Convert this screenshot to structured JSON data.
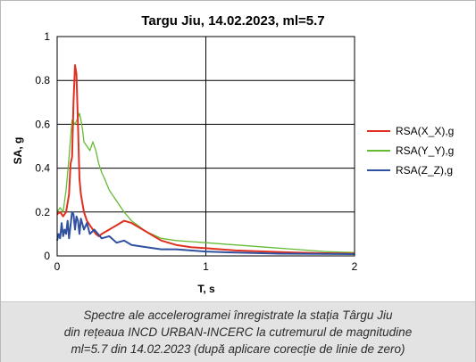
{
  "chart_data": {
    "type": "line",
    "title": "Targu Jiu, 14.02.2023, ml=5.7",
    "xlabel": "T, s",
    "ylabel": "SA, g",
    "xlim": [
      0,
      2
    ],
    "ylim": [
      0,
      1
    ],
    "x_ticks": [
      "0",
      "1",
      "2"
    ],
    "y_ticks": [
      "0",
      "0.2",
      "0.4",
      "0.6",
      "0.8",
      "1"
    ],
    "grid": true,
    "legend_position": "right",
    "series": [
      {
        "name": "RSA(X_X),g",
        "color": "#e03020",
        "x": [
          0.0,
          0.02,
          0.04,
          0.06,
          0.08,
          0.09,
          0.1,
          0.11,
          0.12,
          0.13,
          0.14,
          0.15,
          0.16,
          0.18,
          0.2,
          0.22,
          0.24,
          0.26,
          0.28,
          0.3,
          0.35,
          0.4,
          0.45,
          0.5,
          0.55,
          0.6,
          0.65,
          0.7,
          0.8,
          0.9,
          1.0,
          1.1,
          1.2,
          1.4,
          1.6,
          1.8,
          2.0
        ],
        "y": [
          0.19,
          0.2,
          0.18,
          0.2,
          0.28,
          0.42,
          0.45,
          0.7,
          0.87,
          0.83,
          0.6,
          0.35,
          0.28,
          0.2,
          0.16,
          0.14,
          0.12,
          0.1,
          0.09,
          0.1,
          0.12,
          0.14,
          0.16,
          0.15,
          0.13,
          0.11,
          0.09,
          0.07,
          0.05,
          0.04,
          0.035,
          0.03,
          0.025,
          0.02,
          0.015,
          0.012,
          0.01
        ]
      },
      {
        "name": "RSA(Y_Y),g",
        "color": "#66bb33",
        "x": [
          0.0,
          0.02,
          0.04,
          0.05,
          0.06,
          0.08,
          0.1,
          0.12,
          0.14,
          0.15,
          0.16,
          0.17,
          0.18,
          0.2,
          0.22,
          0.24,
          0.26,
          0.28,
          0.3,
          0.32,
          0.35,
          0.4,
          0.45,
          0.5,
          0.6,
          0.7,
          0.8,
          0.9,
          1.0,
          1.2,
          1.4,
          1.6,
          1.8,
          2.0
        ],
        "y": [
          0.2,
          0.22,
          0.2,
          0.25,
          0.3,
          0.45,
          0.62,
          0.6,
          0.63,
          0.65,
          0.62,
          0.58,
          0.52,
          0.5,
          0.48,
          0.52,
          0.48,
          0.42,
          0.38,
          0.35,
          0.3,
          0.25,
          0.2,
          0.16,
          0.11,
          0.08,
          0.07,
          0.065,
          0.06,
          0.05,
          0.04,
          0.03,
          0.02,
          0.015
        ]
      },
      {
        "name": "RSA(Z_Z),g",
        "color": "#3050a0",
        "x": [
          0.0,
          0.01,
          0.02,
          0.03,
          0.04,
          0.05,
          0.06,
          0.07,
          0.08,
          0.09,
          0.1,
          0.11,
          0.12,
          0.13,
          0.14,
          0.15,
          0.16,
          0.18,
          0.2,
          0.22,
          0.25,
          0.3,
          0.35,
          0.4,
          0.45,
          0.5,
          0.6,
          0.7,
          0.8,
          1.0,
          1.2,
          1.5,
          2.0
        ],
        "y": [
          0.07,
          0.1,
          0.08,
          0.15,
          0.09,
          0.12,
          0.1,
          0.16,
          0.08,
          0.14,
          0.2,
          0.19,
          0.12,
          0.18,
          0.16,
          0.1,
          0.17,
          0.12,
          0.15,
          0.1,
          0.12,
          0.08,
          0.09,
          0.06,
          0.07,
          0.05,
          0.04,
          0.03,
          0.03,
          0.02,
          0.015,
          0.01,
          0.008
        ]
      }
    ]
  },
  "caption": {
    "line1": "Spectre ale accelerogramei înregistrate la stația Târgu Jiu",
    "line2": "din rețeaua INCD URBAN-INCERC la cutremurul de magnitudine",
    "line3": "ml=5.7 din 14.02.2023 (după aplicare corecție de linie de zero)"
  }
}
